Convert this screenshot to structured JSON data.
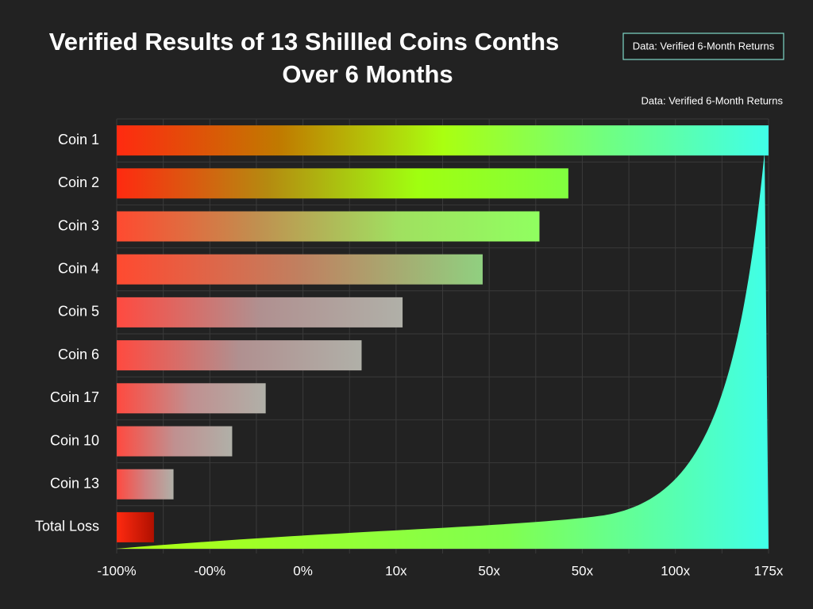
{
  "chart_data": {
    "type": "hbar",
    "title": [
      "Verified Results of 13 Shillled Coins Conths",
      "Over 6 Months"
    ],
    "legend_text": "Data: Verified 6-Month Returns",
    "source_note": "Data: Verified 6-Month Returns",
    "categories": [
      "Coin 1",
      "Coin 2",
      "Coin 3",
      "Coin 4",
      "Coin 5",
      "Coin 6",
      "Coin 17",
      "Coin 10",
      "Coin 13",
      "Total Loss"
    ],
    "values": [
      7.0,
      4.85,
      4.54,
      3.93,
      3.07,
      2.63,
      1.6,
      1.24,
      0.61,
      0.4
    ],
    "bar_gradients": [
      [
        "#ff2a10",
        "#c07a00",
        "#aaff10",
        "#70ff80",
        "#40ffe8"
      ],
      [
        "#ff2a10",
        "#b58a10",
        "#a0ff10",
        "#80ff40"
      ],
      [
        "#ff4a30",
        "#c09050",
        "#a0e060",
        "#90ff60"
      ],
      [
        "#ff4a30",
        "#c08060",
        "#90d080"
      ],
      [
        "#ff4a40",
        "#b09090",
        "#b0b0a8"
      ],
      [
        "#ff4a40",
        "#b09090",
        "#b0b0a8"
      ],
      [
        "#ff4a40",
        "#c09090",
        "#b0b0a8"
      ],
      [
        "#ff4a40",
        "#c09090",
        "#b0b0a8"
      ],
      [
        "#ff4a40",
        "#d08080",
        "#b0b0a8"
      ],
      [
        "#ff2a10",
        "#b01000"
      ]
    ],
    "xlim": [
      0,
      7
    ],
    "xticks": [
      {
        "value": 0,
        "label": "-100%"
      },
      {
        "value": 1,
        "label": "-00%"
      },
      {
        "value": 2,
        "label": "0%"
      },
      {
        "value": 3,
        "label": "10x"
      },
      {
        "value": 4,
        "label": "50x"
      },
      {
        "value": 5,
        "label": "50x"
      },
      {
        "value": 6,
        "label": "100x"
      },
      {
        "value": 7,
        "label": "175x"
      }
    ],
    "grid": true
  }
}
